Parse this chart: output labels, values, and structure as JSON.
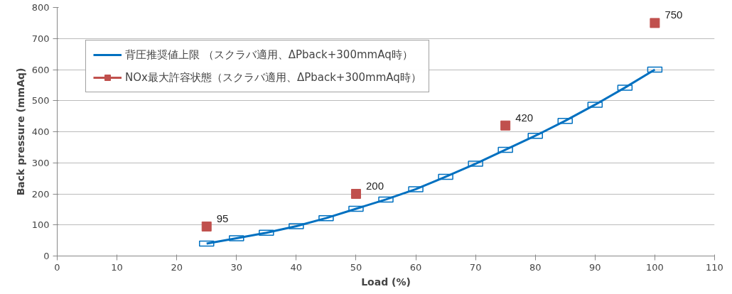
{
  "chart_data": {
    "type": "line",
    "xlabel": "Load (%)",
    "ylabel": "Back pressure (mmAq)",
    "xlim": [
      0,
      110
    ],
    "xticks": [
      0,
      10,
      20,
      30,
      40,
      50,
      60,
      70,
      80,
      90,
      100,
      110
    ],
    "ylim": [
      0,
      800
    ],
    "yticks": [
      0,
      100,
      200,
      300,
      400,
      500,
      600,
      700,
      800
    ],
    "grid": "y",
    "legend": "top left",
    "line_style": "solid",
    "series": [
      {
        "name": "背圧推奨値上限 （スクラバ適用、ΔPback+300mmAq時）",
        "color": "#0070c0",
        "marker": "square",
        "x": [
          25,
          30,
          35,
          40,
          45,
          50,
          55,
          60,
          65,
          70,
          75,
          80,
          85,
          90,
          95,
          100
        ],
        "values": [
          40,
          57,
          75,
          96,
          122,
          152,
          182,
          215,
          255,
          297,
          342,
          387,
          435,
          487,
          542,
          600
        ]
      },
      {
        "name": "NOx最大許容状態（スクラバ適用、ΔPback+300mmAq時）",
        "type": "scatter",
        "color": "#c0504d",
        "marker": "square",
        "x": [
          25,
          50,
          75,
          100
        ],
        "values": [
          95,
          200,
          420,
          750
        ],
        "value_labels": [
          "95",
          "200",
          "420",
          "750"
        ]
      }
    ]
  }
}
